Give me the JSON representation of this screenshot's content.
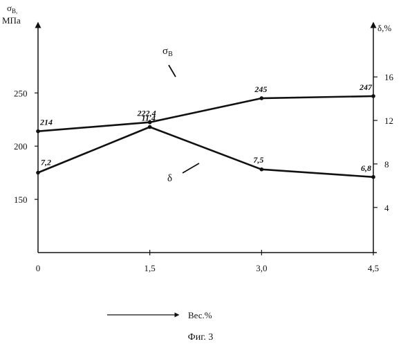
{
  "chart_data": {
    "type": "line",
    "x": [
      0,
      1.5,
      3.0,
      4.5
    ],
    "x_tick_labels": [
      "0",
      "1,5",
      "3,0",
      "4,5"
    ],
    "xlim": [
      0,
      4.5
    ],
    "xlabel": "Вес.%",
    "y_left": {
      "label_top": "σB,",
      "label_bottom": "МПа",
      "ticks": [
        150,
        200,
        250
      ],
      "tick_labels": [
        "150",
        "200",
        "250"
      ],
      "lim": [
        100,
        310
      ]
    },
    "y_right": {
      "label": "δ,%",
      "ticks": [
        4,
        8,
        12,
        16
      ],
      "tick_labels": [
        "4",
        "8",
        "12",
        "16"
      ],
      "lim": [
        -0.15,
        20.4
      ]
    },
    "series": [
      {
        "name": "σB",
        "axis": "left",
        "values": [
          214,
          222.4,
          245,
          247
        ],
        "data_labels": [
          "214",
          "222,4",
          "245",
          "247"
        ]
      },
      {
        "name": "δ",
        "axis": "right",
        "values": [
          7.2,
          11.4,
          7.5,
          6.8
        ],
        "data_labels": [
          "7,2",
          "11,4",
          "7,5",
          "6,8"
        ]
      }
    ],
    "grid": false
  },
  "caption": "Фиг. 3",
  "colors": {
    "ink": "#111111",
    "background": "#ffffff"
  }
}
